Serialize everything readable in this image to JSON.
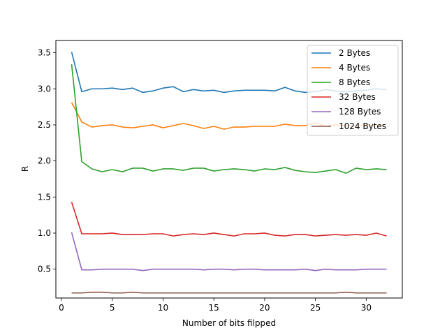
{
  "chart_data": {
    "type": "line",
    "title": "",
    "xlabel": "Number of bits filpped",
    "ylabel": "R",
    "xlim": [
      -0.55,
      33.55
    ],
    "ylim": [
      0.1,
      3.67
    ],
    "xticks": [
      0,
      5,
      10,
      15,
      20,
      25,
      30
    ],
    "xtick_labels": [
      "0",
      "5",
      "10",
      "15",
      "20",
      "25",
      "30"
    ],
    "yticks": [
      0.5,
      1.0,
      1.5,
      2.0,
      2.5,
      3.0,
      3.5
    ],
    "ytick_labels": [
      "0.5",
      "1.0",
      "1.5",
      "2.0",
      "2.5",
      "3.0",
      "3.5"
    ],
    "grid": false,
    "legend_position": "top-right",
    "x": [
      1,
      2,
      3,
      4,
      5,
      6,
      7,
      8,
      9,
      10,
      11,
      12,
      13,
      14,
      15,
      16,
      17,
      18,
      19,
      20,
      21,
      22,
      23,
      24,
      25,
      26,
      27,
      28,
      29,
      30,
      31,
      32
    ],
    "series": [
      {
        "name": "2 Bytes",
        "color": "#1f77b4",
        "values": [
          3.51,
          2.96,
          3.0,
          3.0,
          3.01,
          2.99,
          3.01,
          2.95,
          2.97,
          3.01,
          3.03,
          2.96,
          2.99,
          2.97,
          2.98,
          2.95,
          2.97,
          2.98,
          2.98,
          2.98,
          2.97,
          3.02,
          2.97,
          2.95,
          2.96,
          2.99,
          2.97,
          2.96,
          2.97,
          2.98,
          3.0,
          2.99
        ]
      },
      {
        "name": "4 Bytes",
        "color": "#ff7f0e",
        "values": [
          2.81,
          2.54,
          2.47,
          2.49,
          2.5,
          2.47,
          2.46,
          2.48,
          2.5,
          2.46,
          2.49,
          2.52,
          2.49,
          2.45,
          2.48,
          2.44,
          2.47,
          2.47,
          2.48,
          2.48,
          2.48,
          2.51,
          2.49,
          2.49,
          2.53,
          2.48,
          2.5,
          2.49,
          2.48,
          2.5,
          2.49,
          2.51
        ]
      },
      {
        "name": "8 Bytes",
        "color": "#2ca02c",
        "values": [
          3.34,
          1.99,
          1.89,
          1.85,
          1.88,
          1.85,
          1.9,
          1.9,
          1.86,
          1.89,
          1.89,
          1.87,
          1.9,
          1.9,
          1.86,
          1.88,
          1.89,
          1.88,
          1.86,
          1.89,
          1.88,
          1.91,
          1.87,
          1.85,
          1.84,
          1.86,
          1.88,
          1.83,
          1.9,
          1.88,
          1.89,
          1.88
        ]
      },
      {
        "name": "32 Bytes",
        "color": "#d62728",
        "values": [
          1.43,
          0.99,
          0.99,
          0.99,
          1.0,
          0.98,
          0.98,
          0.98,
          0.99,
          0.99,
          0.96,
          0.98,
          0.99,
          0.98,
          1.0,
          0.98,
          0.96,
          0.99,
          0.99,
          1.0,
          0.97,
          0.96,
          0.98,
          0.98,
          0.96,
          0.97,
          0.98,
          0.97,
          0.98,
          0.97,
          1.0,
          0.96
        ]
      },
      {
        "name": "128 Bytes",
        "color": "#9467bd",
        "values": [
          1.01,
          0.49,
          0.49,
          0.5,
          0.5,
          0.5,
          0.5,
          0.48,
          0.5,
          0.5,
          0.5,
          0.5,
          0.5,
          0.49,
          0.5,
          0.5,
          0.49,
          0.5,
          0.5,
          0.49,
          0.49,
          0.49,
          0.49,
          0.5,
          0.48,
          0.5,
          0.49,
          0.49,
          0.49,
          0.5,
          0.5,
          0.5
        ]
      },
      {
        "name": "1024 Bytes",
        "color": "#8c564b",
        "values": [
          0.17,
          0.17,
          0.18,
          0.18,
          0.17,
          0.17,
          0.18,
          0.17,
          0.17,
          0.17,
          0.17,
          0.17,
          0.17,
          0.17,
          0.17,
          0.17,
          0.17,
          0.17,
          0.17,
          0.17,
          0.17,
          0.17,
          0.17,
          0.17,
          0.17,
          0.17,
          0.17,
          0.18,
          0.17,
          0.17,
          0.17,
          0.17
        ]
      }
    ]
  }
}
